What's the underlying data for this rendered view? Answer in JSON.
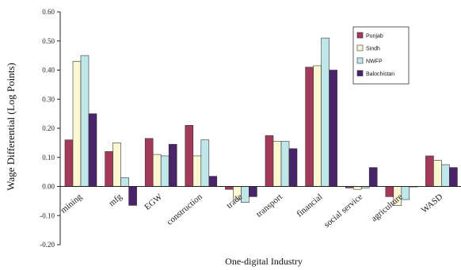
{
  "chart_data": {
    "type": "bar",
    "xlabel": "One-digital Industry",
    "ylabel": "Wage Differential (Log Points)",
    "ylim": [
      -0.2,
      0.6
    ],
    "yticks": [
      "-0.20",
      "-0.10",
      "0.00",
      "0.10",
      "0.20",
      "0.30",
      "0.40",
      "0.50",
      "0.60"
    ],
    "ytick_values": [
      -0.2,
      -0.1,
      0,
      0.1,
      0.2,
      0.3,
      0.4,
      0.5,
      0.6
    ],
    "categories": [
      "mining",
      "mfg",
      "EGW",
      "construction",
      "trade",
      "transport",
      "financial",
      "social service",
      "agriculture",
      "WASD"
    ],
    "legend_position": "top-right",
    "grid": false,
    "series": [
      {
        "name": "Punjab",
        "color": "#a33a5a",
        "values": [
          0.16,
          0.12,
          0.165,
          0.21,
          -0.01,
          0.175,
          0.41,
          -0.005,
          -0.035,
          0.105
        ]
      },
      {
        "name": "Sindh",
        "color": "#fbf7d2",
        "values": [
          0.43,
          0.15,
          0.11,
          0.105,
          -0.045,
          0.155,
          0.415,
          -0.01,
          -0.065,
          0.09
        ]
      },
      {
        "name": "NWFP",
        "color": "#bfe7ea",
        "values": [
          0.45,
          0.03,
          0.105,
          0.16,
          -0.055,
          0.155,
          0.51,
          -0.005,
          -0.045,
          0.075
        ]
      },
      {
        "name": "Balochistan",
        "color": "#4a2468",
        "values": [
          0.25,
          -0.065,
          0.145,
          0.035,
          -0.035,
          0.13,
          0.4,
          0.065,
          0.0,
          0.065
        ]
      }
    ]
  }
}
